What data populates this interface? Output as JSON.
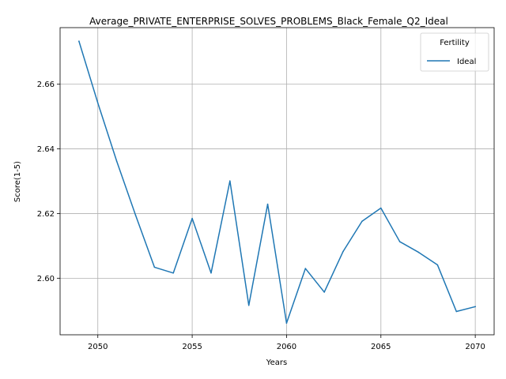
{
  "chart_data": {
    "type": "line",
    "title": "Average_PRIVATE_ENTERPRISE_SOLVES_PROBLEMS_Black_Female_Q2_Ideal",
    "xlabel": "Years",
    "ylabel": "Score(1-5)",
    "xlim": [
      2048,
      2071
    ],
    "ylim": [
      2.5825,
      2.6775
    ],
    "xticks": [
      2050,
      2055,
      2060,
      2065,
      2070
    ],
    "yticks": [
      2.6,
      2.62,
      2.64,
      2.66
    ],
    "ytick_labels": [
      "2.60",
      "2.62",
      "2.64",
      "2.66"
    ],
    "grid": true,
    "legend": {
      "title": "Fertility",
      "placement": "top-right"
    },
    "x": [
      2049,
      2050,
      2051,
      2052,
      2053,
      2054,
      2055,
      2056,
      2057,
      2058,
      2059,
      2060,
      2061,
      2062,
      2063,
      2064,
      2065,
      2066,
      2067,
      2068,
      2069,
      2070
    ],
    "series": [
      {
        "name": "Ideal",
        "color": "#1f77b4",
        "values": [
          2.6733,
          2.6542,
          2.6362,
          2.6195,
          2.6034,
          2.6016,
          2.6185,
          2.6016,
          2.6301,
          2.5916,
          2.6229,
          2.5861,
          2.603,
          2.5957,
          2.6083,
          2.6176,
          2.6217,
          2.6113,
          2.608,
          2.6041,
          2.5897,
          2.5912
        ]
      }
    ]
  }
}
